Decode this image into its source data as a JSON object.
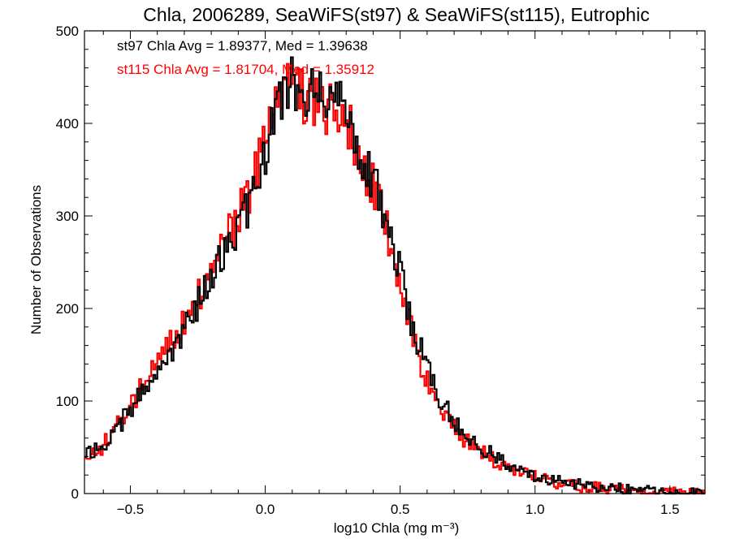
{
  "chart_data": {
    "type": "line",
    "step": true,
    "title": "Chla, 2006289, SeaWiFS(st97) & SeaWiFS(st115), Eutrophic",
    "xlabel": "log10 Chla (mg m⁻³)",
    "ylabel": "Number of Observations",
    "xlim": [
      -0.67,
      1.63
    ],
    "ylim": [
      0,
      500
    ],
    "xticks": [
      -0.5,
      0.0,
      0.5,
      1.0,
      1.5
    ],
    "xtick_labels": [
      "−0.5",
      "0.0",
      "0.5",
      "1.0",
      "1.5"
    ],
    "yticks": [
      0,
      100,
      200,
      300,
      400,
      500
    ],
    "ytick_labels": [
      "0",
      "100",
      "200",
      "300",
      "400",
      "500"
    ],
    "grid": false,
    "annotations": [
      {
        "text": "st97 Chla Avg = 1.89377, Med = 1.39638",
        "color": "#000000"
      },
      {
        "text": "st115 Chla Avg = 1.81704, Med = 1.35912",
        "color": "#ff0000"
      }
    ],
    "series": [
      {
        "color": "#000000",
        "x": [
          -0.67,
          -0.6,
          -0.5,
          -0.4,
          -0.3,
          -0.2,
          -0.1,
          -0.05,
          0.0,
          0.05,
          0.1,
          0.15,
          0.2,
          0.25,
          0.3,
          0.35,
          0.4,
          0.45,
          0.5,
          0.55,
          0.6,
          0.65,
          0.7,
          0.75,
          0.8,
          0.85,
          0.9,
          0.95,
          1.0,
          1.05,
          1.1,
          1.2,
          1.3,
          1.4,
          1.5,
          1.63
        ],
        "values": [
          45,
          50,
          90,
          130,
          175,
          235,
          290,
          320,
          370,
          430,
          440,
          430,
          425,
          420,
          410,
          375,
          340,
          295,
          240,
          175,
          140,
          100,
          80,
          62,
          50,
          40,
          30,
          25,
          20,
          15,
          12,
          8,
          5,
          3,
          1,
          0
        ]
      },
      {
        "color": "#ff0000",
        "x": [
          -0.67,
          -0.6,
          -0.5,
          -0.4,
          -0.3,
          -0.2,
          -0.1,
          -0.05,
          0.0,
          0.05,
          0.1,
          0.15,
          0.2,
          0.25,
          0.3,
          0.35,
          0.4,
          0.45,
          0.5,
          0.55,
          0.6,
          0.65,
          0.7,
          0.75,
          0.8,
          0.85,
          0.9,
          0.95,
          1.0,
          1.05,
          1.1,
          1.2,
          1.3,
          1.4,
          1.5,
          1.63
        ],
        "values": [
          35,
          52,
          95,
          140,
          185,
          240,
          300,
          330,
          380,
          440,
          435,
          425,
          420,
          415,
          400,
          370,
          330,
          290,
          230,
          165,
          120,
          90,
          70,
          55,
          45,
          35,
          28,
          22,
          18,
          13,
          10,
          7,
          4,
          2,
          1,
          0
        ]
      }
    ]
  }
}
